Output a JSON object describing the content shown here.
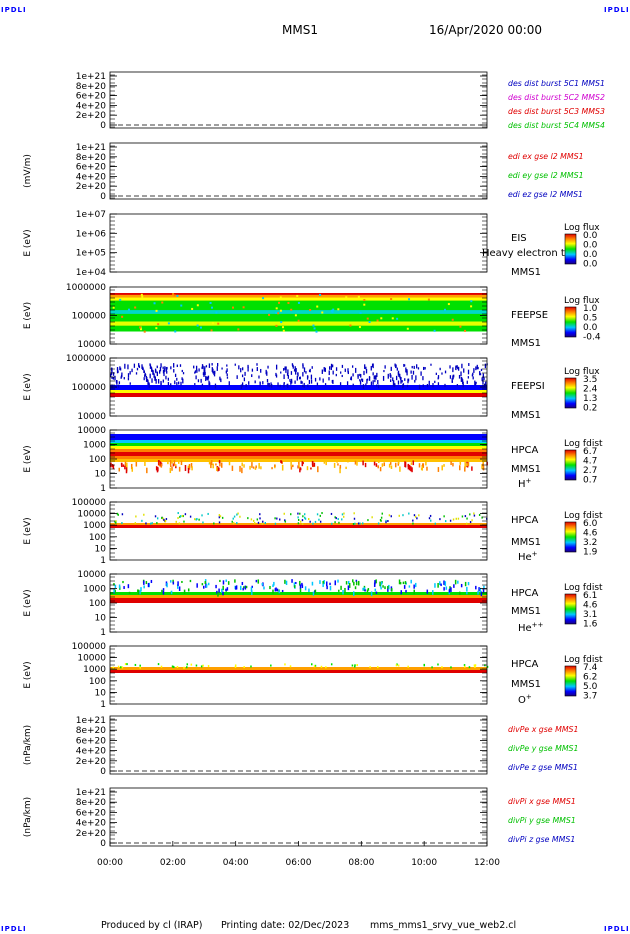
{
  "corner_label": "IPDLI",
  "header": {
    "title": "MMS1",
    "date": "16/Apr/2020 00:00"
  },
  "footer": {
    "produced": "Produced by cl (IRAP)",
    "printing": "Printing date: 02/Dec/2023",
    "file": "mms_mms1_srvy_vue_web2.cl"
  },
  "x_ticks": [
    "00:00",
    "02:00",
    "04:00",
    "06:00",
    "08:00",
    "10:00",
    "12:00"
  ],
  "colors": {
    "red": "#e00000",
    "green": "#00c000",
    "blue": "#0000c0",
    "magenta": "#d000d0"
  },
  "chart_data": [
    {
      "type": "line",
      "ylabel": "",
      "ylim": [
        0,
        1.2e+21
      ],
      "y_ticks": [
        "1e+21",
        "8e+20",
        "6e+20",
        "4e+20",
        "2e+20",
        "0"
      ],
      "series": [
        {
          "name": "des dist burst 5C1 MMS1",
          "color": "#0000c0"
        },
        {
          "name": "des dist burst 5C2 MMS2",
          "color": "#d000d0"
        },
        {
          "name": "des dist burst 5C3 MMS3",
          "color": "#e00000"
        },
        {
          "name": "des dist burst 5C4 MMS4",
          "color": "#00c000"
        }
      ]
    },
    {
      "type": "line",
      "ylabel": "(mV/m)",
      "ylim": [
        0,
        1.2e+21
      ],
      "y_ticks": [
        "1e+21",
        "8e+20",
        "6e+20",
        "4e+20",
        "2e+20",
        "0"
      ],
      "series": [
        {
          "name": "edi ex gse l2 MMS1",
          "color": "#e00000"
        },
        {
          "name": "edi ey gse l2 MMS1",
          "color": "#00c000"
        },
        {
          "name": "edi ez gse l2 MMS1",
          "color": "#0000c0"
        }
      ]
    },
    {
      "type": "heatmap",
      "ylabel": "E (eV)",
      "y_ticks": [
        "1e+07",
        "1e+06",
        "1e+05",
        "1e+04"
      ],
      "side": [
        "EIS",
        "MMS1"
      ],
      "overlay": "Heavy electron to",
      "colorbar": {
        "title": "Log flux",
        "values": [
          "0.0",
          "0.0",
          "0.0",
          "0.0"
        ]
      }
    },
    {
      "type": "heatmap",
      "ylabel": "E (eV)",
      "y_ticks": [
        "1000000",
        "100000",
        "10000"
      ],
      "side": [
        "FEEPSE",
        "MMS1"
      ],
      "colorbar": {
        "title": "Log flux",
        "values": [
          "1.0",
          "0.5",
          "0.0",
          "-0.4"
        ]
      }
    },
    {
      "type": "heatmap",
      "ylabel": "E (eV)",
      "y_ticks": [
        "1000000",
        "100000",
        "10000"
      ],
      "side": [
        "FEEPSI",
        "MMS1"
      ],
      "colorbar": {
        "title": "Log flux",
        "values": [
          "3.5",
          "2.4",
          "1.3",
          "0.2"
        ]
      }
    },
    {
      "type": "heatmap",
      "ylabel": "E (eV)",
      "y_ticks": [
        "10000",
        "1000",
        "100",
        "10",
        "1"
      ],
      "side": [
        "HPCA",
        "MMS1",
        "H+"
      ],
      "colorbar": {
        "title": "Log fdist",
        "values": [
          "6.7",
          "4.7",
          "2.7",
          "0.7"
        ]
      }
    },
    {
      "type": "heatmap",
      "ylabel": "E (eV)",
      "y_ticks": [
        "100000",
        "10000",
        "1000",
        "100",
        "10",
        "1"
      ],
      "side": [
        "HPCA",
        "MMS1",
        "He+"
      ],
      "colorbar": {
        "title": "Log fdist",
        "values": [
          "6.0",
          "4.6",
          "3.2",
          "1.9"
        ]
      }
    },
    {
      "type": "heatmap",
      "ylabel": "E (eV)",
      "y_ticks": [
        "10000",
        "1000",
        "100",
        "10",
        "1"
      ],
      "side": [
        "HPCA",
        "MMS1",
        "He++"
      ],
      "colorbar": {
        "title": "Log fdist",
        "values": [
          "6.1",
          "4.6",
          "3.1",
          "1.6"
        ]
      }
    },
    {
      "type": "heatmap",
      "ylabel": "E (eV)",
      "y_ticks": [
        "100000",
        "10000",
        "1000",
        "100",
        "10",
        "1"
      ],
      "side": [
        "HPCA",
        "MMS1",
        "O+"
      ],
      "colorbar": {
        "title": "Log fdist",
        "values": [
          "7.4",
          "6.2",
          "5.0",
          "3.7"
        ]
      }
    },
    {
      "type": "line",
      "ylabel": "(nPa/km)",
      "ylim": [
        0,
        1.2e+21
      ],
      "y_ticks": [
        "1e+21",
        "8e+20",
        "6e+20",
        "4e+20",
        "2e+20",
        "0"
      ],
      "series": [
        {
          "name": "divPe x gse MMS1",
          "color": "#e00000"
        },
        {
          "name": "divPe y gse MMS1",
          "color": "#00c000"
        },
        {
          "name": "divPe z gse MMS1",
          "color": "#0000c0"
        }
      ]
    },
    {
      "type": "line",
      "ylabel": "(nPa/km)",
      "ylim": [
        0,
        1.2e+21
      ],
      "y_ticks": [
        "1e+21",
        "8e+20",
        "6e+20",
        "4e+20",
        "2e+20",
        "0"
      ],
      "series": [
        {
          "name": "divPi x gse MMS1",
          "color": "#e00000"
        },
        {
          "name": "divPi y gse MMS1",
          "color": "#00c000"
        },
        {
          "name": "divPi z gse MMS1",
          "color": "#0000c0"
        }
      ]
    }
  ]
}
